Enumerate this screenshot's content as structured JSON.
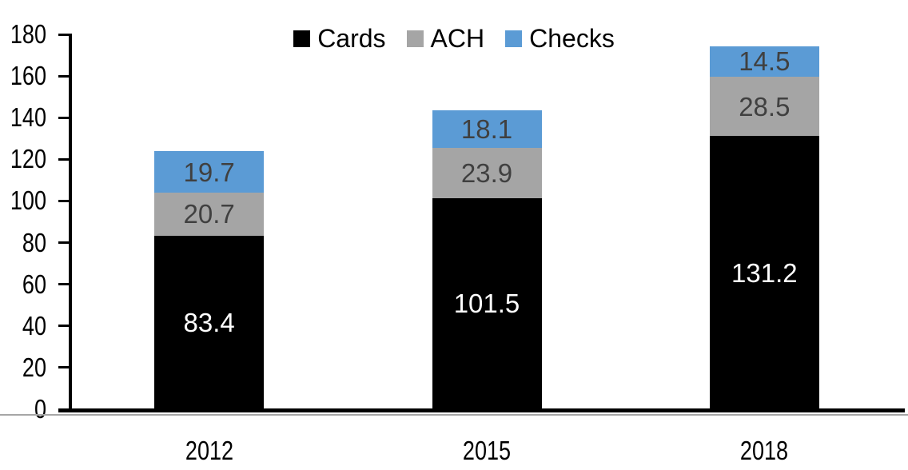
{
  "chart_data": {
    "type": "bar",
    "stacked": true,
    "title": "",
    "xlabel": "",
    "ylabel": "",
    "categories": [
      "2012",
      "2015",
      "2018"
    ],
    "series": [
      {
        "name": "Cards",
        "color": "#000000",
        "label_color": "#ffffff",
        "values": [
          83.4,
          101.5,
          131.2
        ]
      },
      {
        "name": "ACH",
        "color": "#a5a5a5",
        "label_color": "#404040",
        "values": [
          20.7,
          23.9,
          28.5
        ]
      },
      {
        "name": "Checks",
        "color": "#5b9bd5",
        "label_color": "#404040",
        "values": [
          19.7,
          18.1,
          14.5
        ]
      }
    ],
    "totals": [
      123.8,
      143.5,
      174.2
    ],
    "ylim": [
      0,
      180
    ],
    "yticks": [
      0,
      20,
      40,
      60,
      80,
      100,
      120,
      140,
      160,
      180
    ],
    "grid": false,
    "legend_position": "top-center",
    "value_labels": "inside-center",
    "axis_color": "#000000",
    "axis_shadow_color": "#a6a6a6"
  }
}
